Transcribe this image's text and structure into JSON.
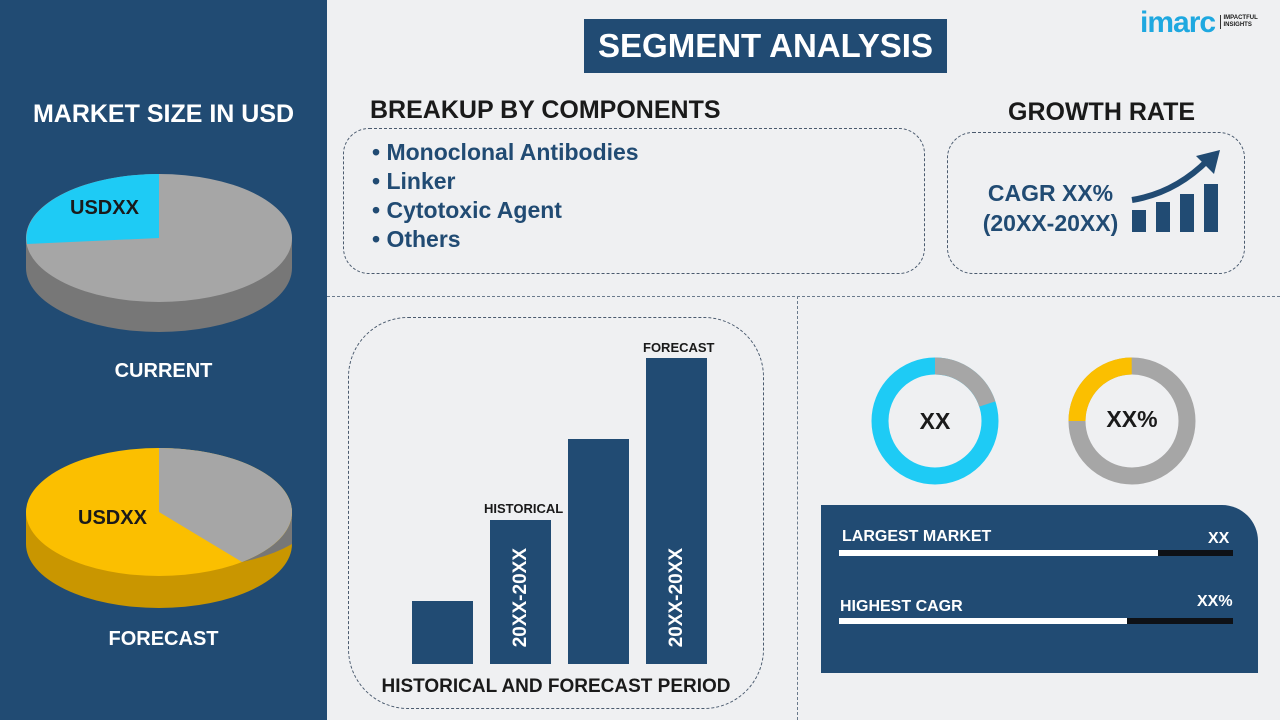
{
  "logo": {
    "brand": "imarc",
    "tagline": "IMPACTFUL INSIGHTS"
  },
  "title": "SEGMENT ANALYSIS",
  "market_size": {
    "heading": "MARKET SIZE IN USD",
    "current": {
      "value": "USDXX",
      "label": "CURRENT"
    },
    "forecast": {
      "value": "USDXX",
      "label": "FORECAST"
    }
  },
  "breakup": {
    "heading": "BREAKUP BY COMPONENTS",
    "items": [
      "Monoclonal Antibodies",
      "Linker",
      "Cytotoxic Agent",
      "Others"
    ]
  },
  "growth": {
    "heading": "GROWTH RATE",
    "cagr": "CAGR XX%",
    "period": "(20XX-20XX)"
  },
  "period_chart": {
    "historical_label": "HISTORICAL",
    "forecast_label": "FORECAST",
    "historical_period": "20XX-20XX",
    "forecast_period": "20XX-20XX",
    "footer": "HISTORICAL AND FORECAST PERIOD"
  },
  "donuts": [
    {
      "value": "XX",
      "color": "#1ecbf5"
    },
    {
      "value": "XX%",
      "color": "#fbbf00"
    }
  ],
  "stats": [
    {
      "label": "LARGEST MARKET",
      "value": "XX",
      "fill_percent": 81
    },
    {
      "label": "HIGHEST CAGR",
      "value": "XX%",
      "fill_percent": 73
    }
  ],
  "colors": {
    "navy": "#214b73",
    "cyan": "#1ecbf5",
    "yellow": "#fbbf00",
    "gray": "#a6a6a6"
  }
}
